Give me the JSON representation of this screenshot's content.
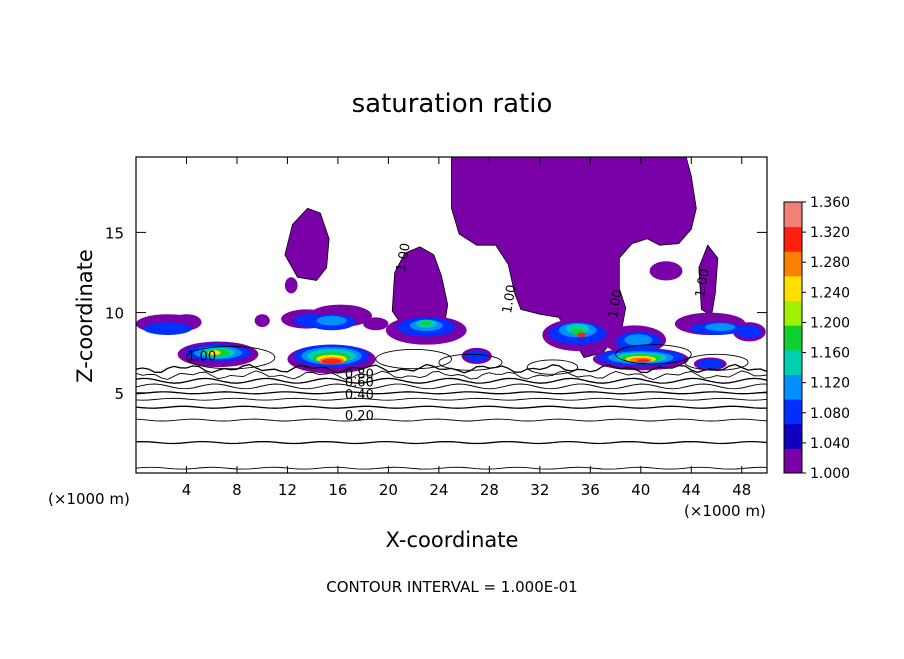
{
  "chart_data": {
    "type": "heatmap",
    "title": "saturation ratio",
    "xlabel": "X-coordinate",
    "ylabel": "Z-coordinate",
    "x_unit_left": "(×1000 m)",
    "x_unit_right": "(×1000 m)",
    "footer": "CONTOUR INTERVAL = 1.000E-01",
    "xlim": [
      0,
      50
    ],
    "ylim": [
      0,
      19.7
    ],
    "x_ticks": [
      4,
      8,
      12,
      16,
      20,
      24,
      28,
      32,
      36,
      40,
      44,
      48
    ],
    "y_ticks": [
      5,
      10,
      15
    ],
    "colorbar": {
      "min": 1.0,
      "max": 1.36,
      "ticks": [
        "1.360",
        "1.320",
        "1.280",
        "1.240",
        "1.200",
        "1.160",
        "1.120",
        "1.080",
        "1.040",
        "1.000"
      ],
      "colors": [
        "#f08078",
        "#ff2010",
        "#ff8000",
        "#ffe000",
        "#a0f000",
        "#10d030",
        "#00d0b0",
        "#0090ff",
        "#0030ff",
        "#1000c0",
        "#7a00a8"
      ]
    },
    "contour_levels": [
      0.1,
      0.2,
      0.3,
      0.4,
      0.5,
      0.6,
      0.7,
      0.8,
      0.9,
      1.0
    ],
    "contour_labels": [
      {
        "text": "0.20",
        "x": 17.7,
        "z": 3.3
      },
      {
        "text": "0.40",
        "x": 17.7,
        "z": 4.6
      },
      {
        "text": "0.60",
        "x": 17.7,
        "z": 5.4
      },
      {
        "text": "0.80",
        "x": 17.7,
        "z": 5.9
      },
      {
        "text": "1.00",
        "x": 5.2,
        "z": 7.0
      },
      {
        "text": "1.00",
        "x": 21.5,
        "z": 13.4
      },
      {
        "text": "1.00",
        "x": 29.9,
        "z": 10.8
      },
      {
        "text": "1.00",
        "x": 38.3,
        "z": 10.5
      },
      {
        "text": "1.00",
        "x": 45.2,
        "z": 11.8
      }
    ]
  }
}
